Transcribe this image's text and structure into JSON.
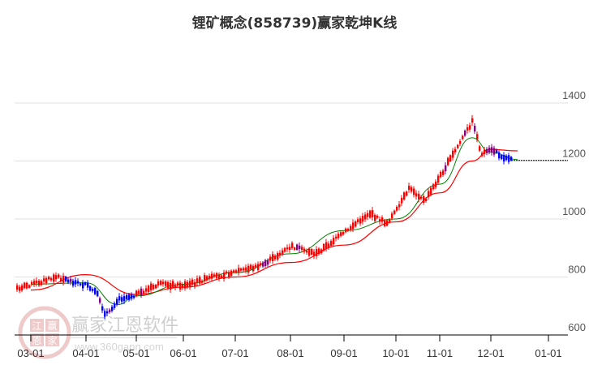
{
  "chart_data": {
    "type": "candlestick",
    "title": "锂矿概念(858739)赢家乾坤K线",
    "xlabel": "",
    "ylabel": "",
    "ylim": [
      600,
      1400
    ],
    "y_ticks": [
      600,
      800,
      1000,
      1200,
      1400
    ],
    "x_ticks": [
      "03-01",
      "04-01",
      "05-01",
      "06-01",
      "07-01",
      "08-01",
      "09-01",
      "10-01",
      "11-01",
      "12-01",
      "01-01"
    ],
    "grid": "horizontal",
    "colors": {
      "up": "#ff0000",
      "down": "#0000ff",
      "neutral": "#800080",
      "ma_short": "#008000",
      "ma_long": "#ff0000",
      "grid": "#e0e0e0",
      "axis": "#000000"
    },
    "last_price_line": 1202,
    "series": [
      {
        "name": "price_close_approx",
        "points": [
          [
            "03-01",
            775
          ],
          [
            "03-15",
            800
          ],
          [
            "04-01",
            770
          ],
          [
            "04-08",
            735
          ],
          [
            "04-12",
            665
          ],
          [
            "04-20",
            725
          ],
          [
            "05-01",
            740
          ],
          [
            "05-15",
            775
          ],
          [
            "06-01",
            770
          ],
          [
            "06-15",
            795
          ],
          [
            "07-01",
            820
          ],
          [
            "07-15",
            840
          ],
          [
            "08-01",
            905
          ],
          [
            "08-15",
            880
          ],
          [
            "09-01",
            955
          ],
          [
            "09-15",
            1020
          ],
          [
            "09-25",
            985
          ],
          [
            "10-01",
            1030
          ],
          [
            "10-10",
            1110
          ],
          [
            "10-20",
            1060
          ],
          [
            "11-01",
            1150
          ],
          [
            "11-10",
            1240
          ],
          [
            "11-20",
            1340
          ],
          [
            "11-25",
            1220
          ],
          [
            "12-01",
            1240
          ],
          [
            "12-08",
            1210
          ],
          [
            "12-15",
            1215
          ]
        ]
      },
      {
        "name": "ma_short_green",
        "points": [
          [
            "03-01",
            775
          ],
          [
            "04-01",
            780
          ],
          [
            "04-20",
            705
          ],
          [
            "05-01",
            735
          ],
          [
            "06-01",
            775
          ],
          [
            "07-01",
            815
          ],
          [
            "08-01",
            880
          ],
          [
            "09-01",
            960
          ],
          [
            "10-01",
            1000
          ],
          [
            "11-01",
            1120
          ],
          [
            "11-20",
            1280
          ],
          [
            "12-01",
            1230
          ],
          [
            "12-15",
            1205
          ]
        ]
      },
      {
        "name": "ma_long_red",
        "points": [
          [
            "03-01",
            755
          ],
          [
            "04-01",
            808
          ],
          [
            "05-01",
            740
          ],
          [
            "06-01",
            765
          ],
          [
            "07-01",
            800
          ],
          [
            "08-01",
            850
          ],
          [
            "09-01",
            910
          ],
          [
            "10-01",
            990
          ],
          [
            "11-01",
            1090
          ],
          [
            "11-20",
            1200
          ],
          [
            "12-01",
            1240
          ],
          [
            "12-15",
            1235
          ]
        ]
      }
    ]
  },
  "title": "锂矿概念(858739)赢家乾坤K线",
  "axis": {
    "y_labels": [
      "1400",
      "1200",
      "1000",
      "800",
      "600"
    ],
    "x_labels": [
      "03-01",
      "04-01",
      "05-01",
      "06-01",
      "07-01",
      "08-01",
      "09-01",
      "10-01",
      "11-01",
      "12-01",
      "01-01"
    ]
  },
  "watermark": {
    "name": "赢家江恩软件",
    "url": "www.360gann.com",
    "logo_chars": [
      "江",
      "赢",
      "恩",
      "家"
    ]
  }
}
